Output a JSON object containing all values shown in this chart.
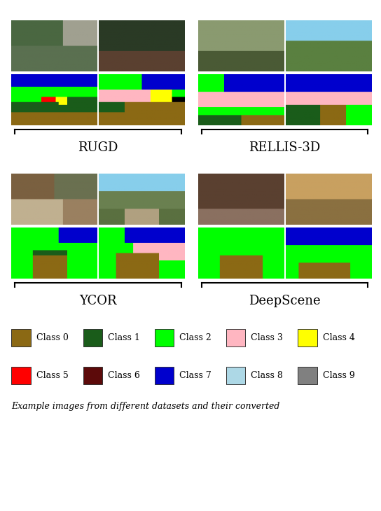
{
  "class_colors": {
    "Class 0": "#8B6914",
    "Class 1": "#1A5C1A",
    "Class 2": "#00FF00",
    "Class 3": "#FFB6C1",
    "Class 4": "#FFFF00",
    "Class 5": "#FF0000",
    "Class 6": "#5C0A0A",
    "Class 7": "#0000CD",
    "Class 8": "#ADD8E6",
    "Class 9": "#808080"
  },
  "dataset_labels": [
    "RUGD",
    "RELLIS-3D",
    "YCOR",
    "DeepScene"
  ],
  "figure_width": 5.44,
  "figure_height": 7.3,
  "background_color": "#FFFFFF"
}
